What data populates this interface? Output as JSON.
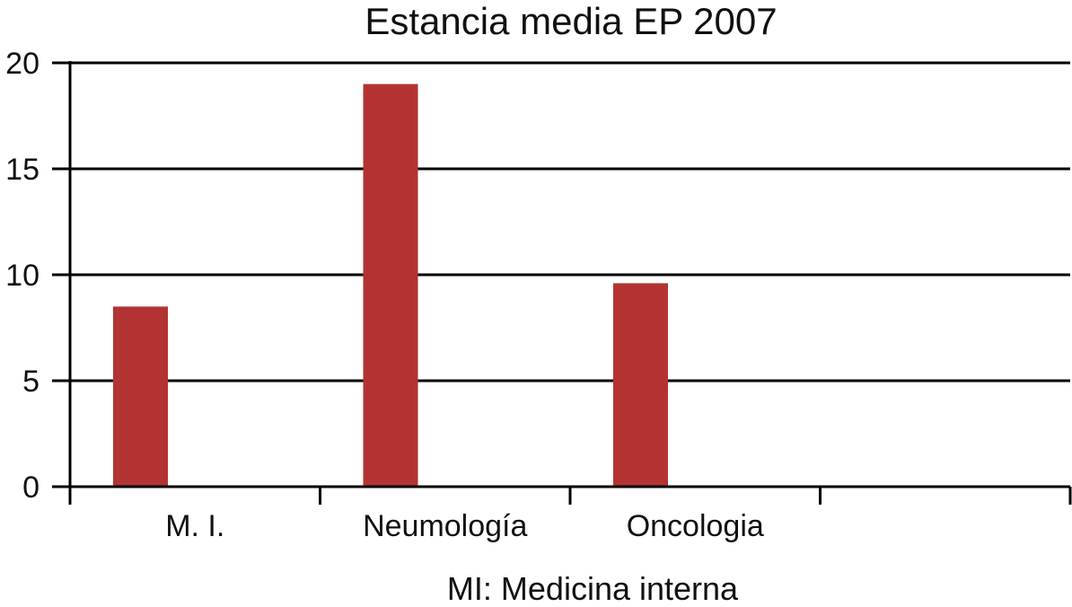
{
  "chart_data": {
    "type": "bar",
    "title": "Estancia media EP 2007",
    "categories": [
      "M. I.",
      "Neumología",
      "Oncologia",
      ""
    ],
    "values": [
      8.5,
      19,
      9.6,
      null
    ],
    "xlabel": "",
    "ylabel": "",
    "ylim": [
      0,
      20
    ],
    "yticks": [
      "0",
      "5",
      "10",
      "15",
      "20"
    ],
    "grid": true,
    "legend": "none",
    "bar_color": "#b33333",
    "footnote": "MI: Medicina interna"
  }
}
